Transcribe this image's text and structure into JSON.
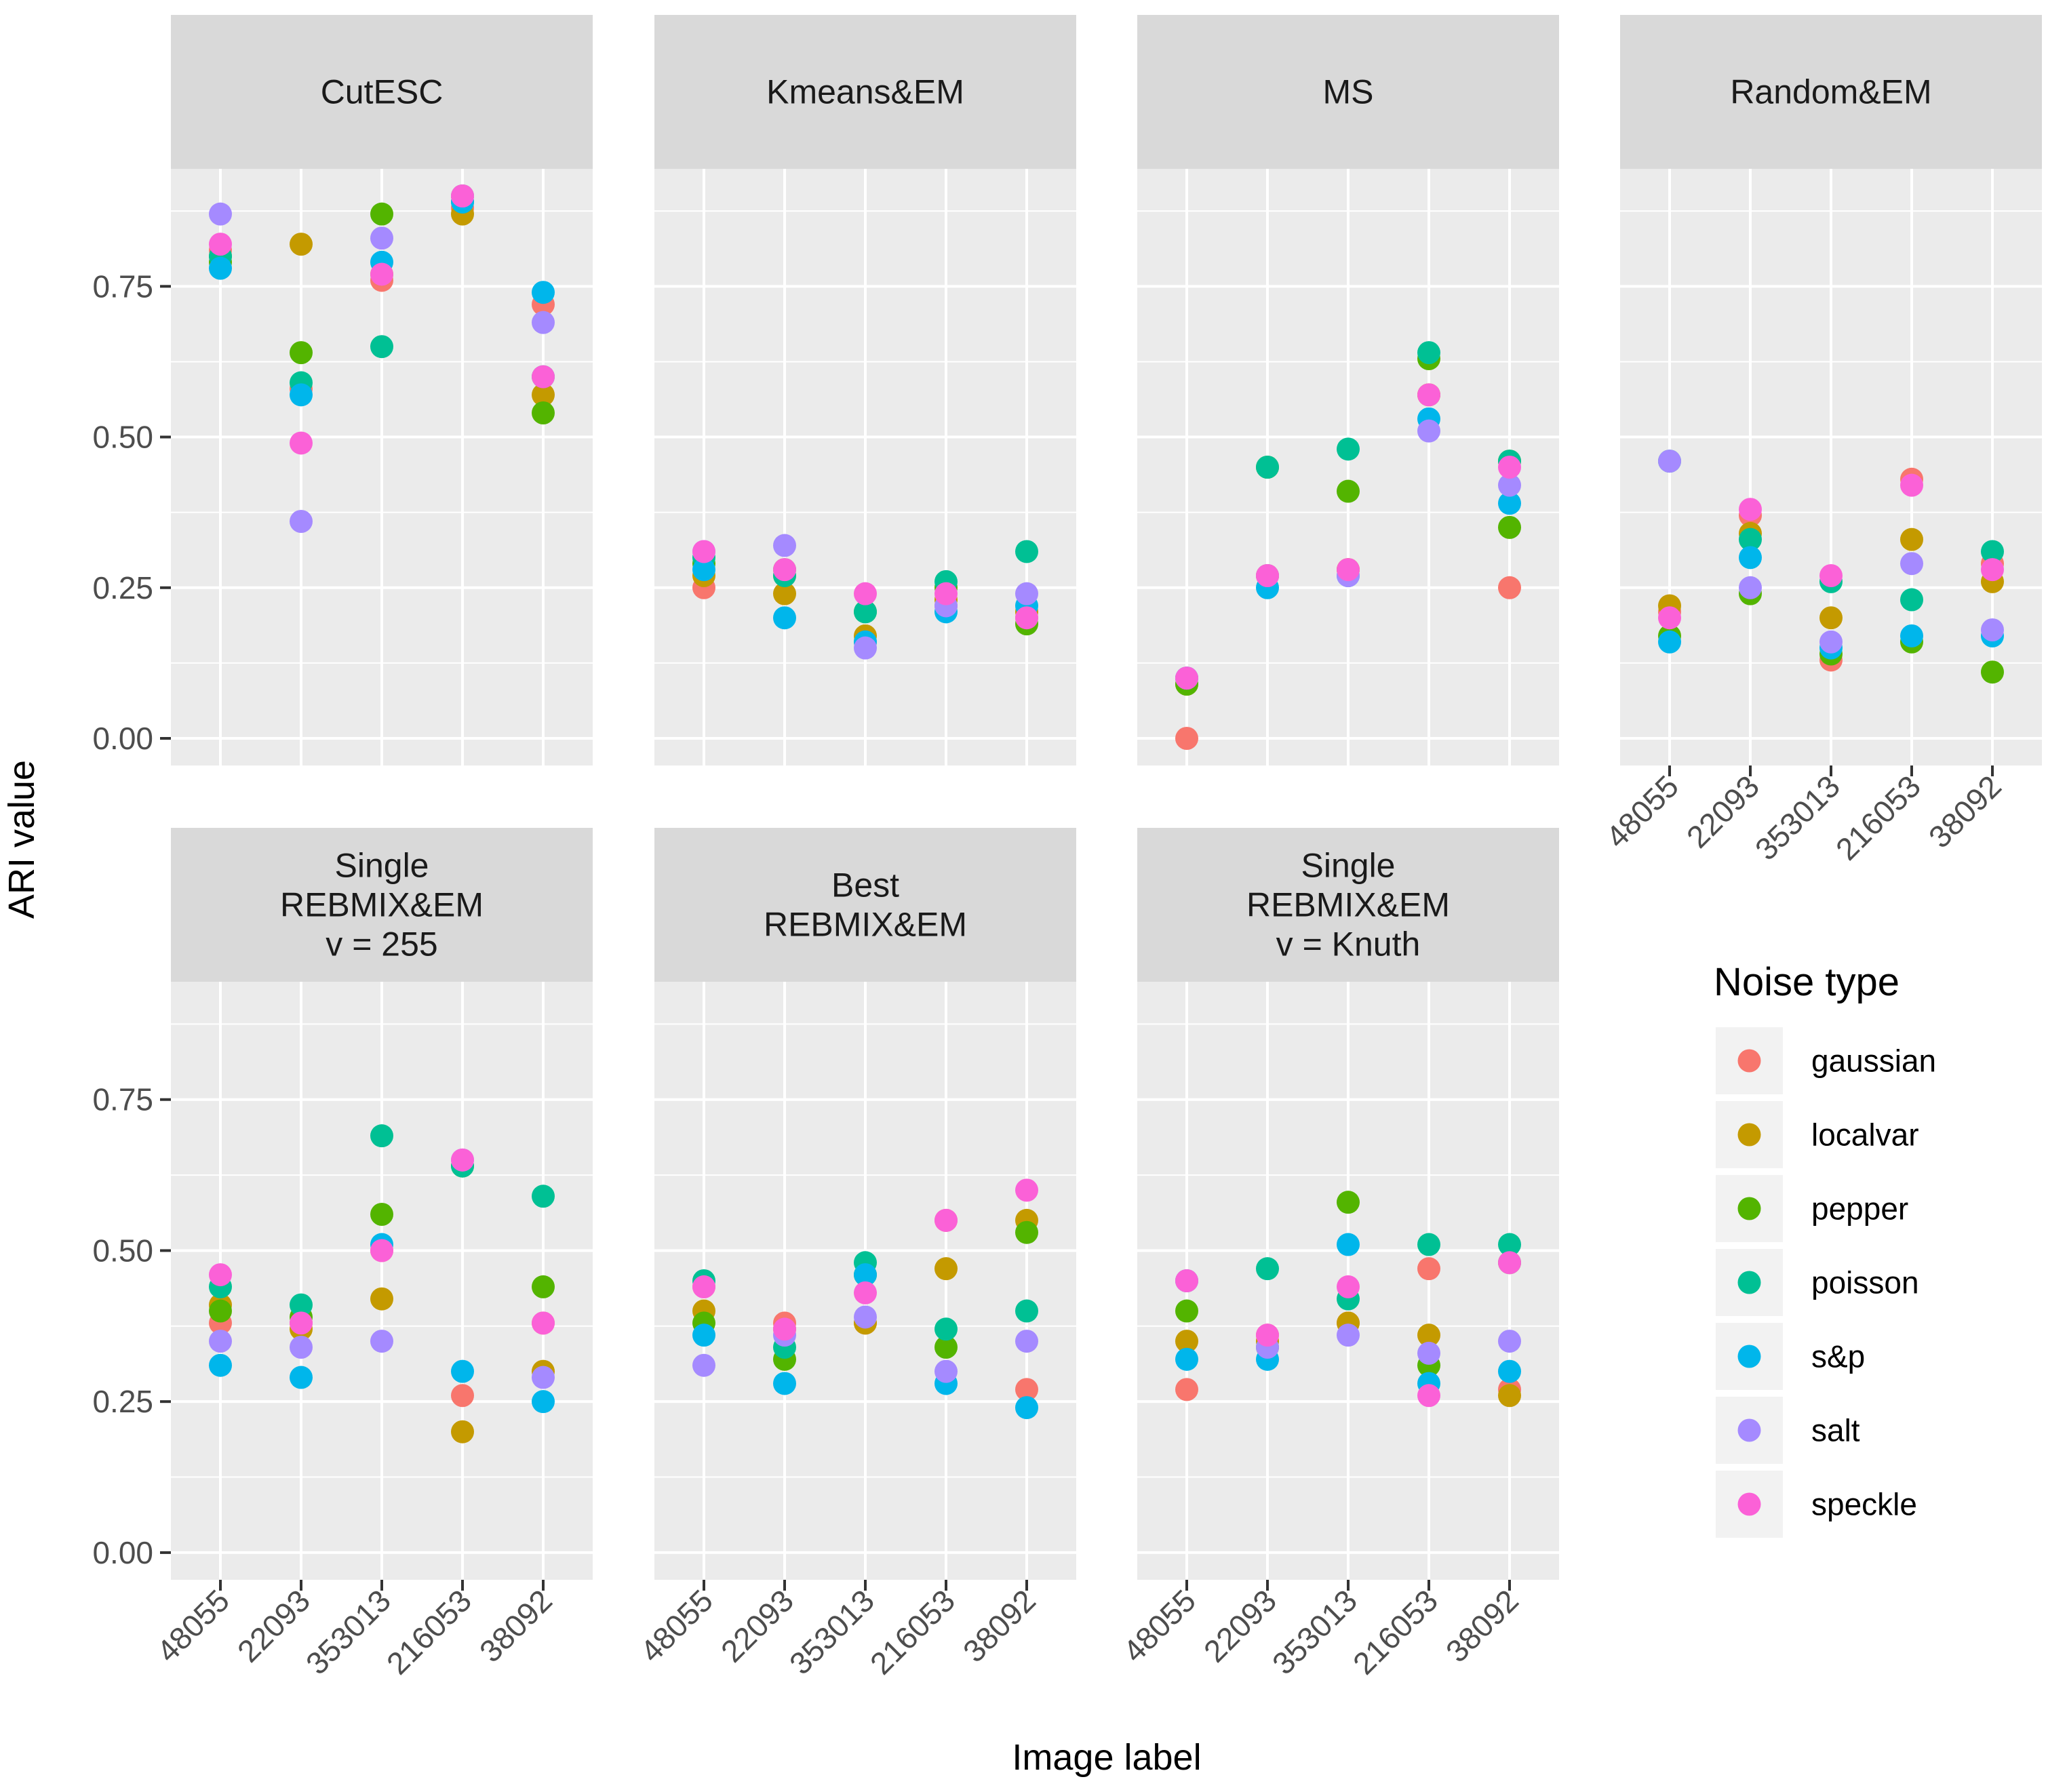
{
  "chart_data": {
    "type": "scatter",
    "ylabel": "ARI value",
    "xlabel": "Image label",
    "categories": [
      "48055",
      "22093",
      "353013",
      "216053",
      "38092"
    ],
    "ylim": [
      -0.045,
      0.945
    ],
    "yticks": [
      "0.00",
      "0.25",
      "0.50",
      "0.75"
    ],
    "legend": {
      "title": "Noise type",
      "position": "right",
      "entries": [
        {
          "name": "gaussian",
          "color": "#F8766D"
        },
        {
          "name": "localvar",
          "color": "#C49A00"
        },
        {
          "name": "pepper",
          "color": "#53B400"
        },
        {
          "name": "poisson",
          "color": "#00C094"
        },
        {
          "name": "s&p",
          "color": "#00B6EB"
        },
        {
          "name": "salt",
          "color": "#A58AFF"
        },
        {
          "name": "speckle",
          "color": "#FB61D7"
        }
      ]
    },
    "panels": [
      {
        "strip": [
          "CutESC"
        ],
        "series": {
          "gaussian": [
            0.81,
            0.58,
            0.76,
            0.88,
            0.72
          ],
          "localvar": [
            0.8,
            0.82,
            0.77,
            0.87,
            0.57
          ],
          "pepper": [
            0.79,
            0.64,
            0.87,
            0.9,
            0.54
          ],
          "poisson": [
            0.8,
            0.59,
            0.65,
            0.89,
            0.6
          ],
          "s&p": [
            0.78,
            0.57,
            0.79,
            0.89,
            0.74
          ],
          "salt": [
            0.87,
            0.36,
            0.83,
            0.9,
            0.69
          ],
          "speckle": [
            0.82,
            0.49,
            0.77,
            0.9,
            0.6
          ]
        }
      },
      {
        "strip": [
          "Kmeans&EM"
        ],
        "series": {
          "gaussian": [
            0.25,
            0.27,
            0.16,
            0.22,
            0.2
          ],
          "localvar": [
            0.27,
            0.24,
            0.17,
            0.23,
            0.21
          ],
          "pepper": [
            0.29,
            0.28,
            0.21,
            0.25,
            0.19
          ],
          "poisson": [
            0.3,
            0.27,
            0.21,
            0.26,
            0.31
          ],
          "s&p": [
            0.28,
            0.2,
            0.16,
            0.21,
            0.22
          ],
          "salt": [
            0.31,
            0.32,
            0.15,
            0.22,
            0.24
          ],
          "speckle": [
            0.31,
            0.28,
            0.24,
            0.24,
            0.2
          ]
        }
      },
      {
        "strip": [
          "MS"
        ],
        "series": {
          "gaussian": [
            0.0,
            0.27,
            0.28,
            0.57,
            0.25
          ],
          "localvar": [
            0.09,
            0.27,
            0.28,
            0.57,
            0.46
          ],
          "pepper": [
            0.09,
            0.45,
            0.41,
            0.63,
            0.35
          ],
          "poisson": [
            0.1,
            0.45,
            0.48,
            0.64,
            0.46
          ],
          "s&p": [
            0.1,
            0.25,
            0.27,
            0.53,
            0.39
          ],
          "salt": [
            0.1,
            0.27,
            0.27,
            0.51,
            0.42
          ],
          "speckle": [
            0.1,
            0.27,
            0.28,
            0.57,
            0.45
          ]
        }
      },
      {
        "strip": [
          "Random&EM"
        ],
        "series": {
          "gaussian": [
            0.21,
            0.37,
            0.13,
            0.43,
            0.29
          ],
          "localvar": [
            0.22,
            0.34,
            0.2,
            0.33,
            0.26
          ],
          "pepper": [
            0.17,
            0.24,
            0.14,
            0.16,
            0.11
          ],
          "poisson": [
            0.46,
            0.33,
            0.26,
            0.23,
            0.31
          ],
          "s&p": [
            0.16,
            0.3,
            0.15,
            0.17,
            0.17
          ],
          "salt": [
            0.46,
            0.25,
            0.16,
            0.29,
            0.18
          ],
          "speckle": [
            0.2,
            0.38,
            0.27,
            0.42,
            0.28
          ]
        }
      },
      {
        "strip": [
          "Single",
          "REBMIX&EM",
          "v = 255"
        ],
        "series": {
          "gaussian": [
            0.38,
            0.38,
            0.5,
            0.26,
            0.38
          ],
          "localvar": [
            0.41,
            0.37,
            0.42,
            0.2,
            0.3
          ],
          "pepper": [
            0.4,
            0.39,
            0.56,
            0.64,
            0.44
          ],
          "poisson": [
            0.44,
            0.41,
            0.69,
            0.64,
            0.59
          ],
          "s&p": [
            0.31,
            0.29,
            0.51,
            0.3,
            0.25
          ],
          "salt": [
            0.35,
            0.34,
            0.35,
            0.65,
            0.29
          ],
          "speckle": [
            0.46,
            0.38,
            0.5,
            0.65,
            0.38
          ]
        }
      },
      {
        "strip": [
          "Best",
          "REBMIX&EM"
        ],
        "series": {
          "gaussian": [
            0.44,
            0.38,
            0.38,
            0.55,
            0.27
          ],
          "localvar": [
            0.4,
            0.37,
            0.38,
            0.47,
            0.55
          ],
          "pepper": [
            0.38,
            0.32,
            0.46,
            0.34,
            0.53
          ],
          "poisson": [
            0.45,
            0.34,
            0.48,
            0.37,
            0.4
          ],
          "s&p": [
            0.36,
            0.28,
            0.46,
            0.28,
            0.24
          ],
          "salt": [
            0.31,
            0.36,
            0.39,
            0.3,
            0.35
          ],
          "speckle": [
            0.44,
            0.37,
            0.43,
            0.55,
            0.6
          ]
        }
      },
      {
        "strip": [
          "Single",
          "REBMIX&EM",
          "v = Knuth"
        ],
        "series": {
          "gaussian": [
            0.27,
            0.36,
            0.38,
            0.47,
            0.27
          ],
          "localvar": [
            0.35,
            0.35,
            0.38,
            0.36,
            0.26
          ],
          "pepper": [
            0.4,
            0.34,
            0.58,
            0.31,
            0.48
          ],
          "poisson": [
            0.45,
            0.47,
            0.42,
            0.51,
            0.51
          ],
          "s&p": [
            0.32,
            0.32,
            0.51,
            0.28,
            0.3
          ],
          "salt": [
            0.45,
            0.34,
            0.36,
            0.33,
            0.35
          ],
          "speckle": [
            0.45,
            0.36,
            0.44,
            0.26,
            0.48
          ]
        }
      }
    ]
  }
}
